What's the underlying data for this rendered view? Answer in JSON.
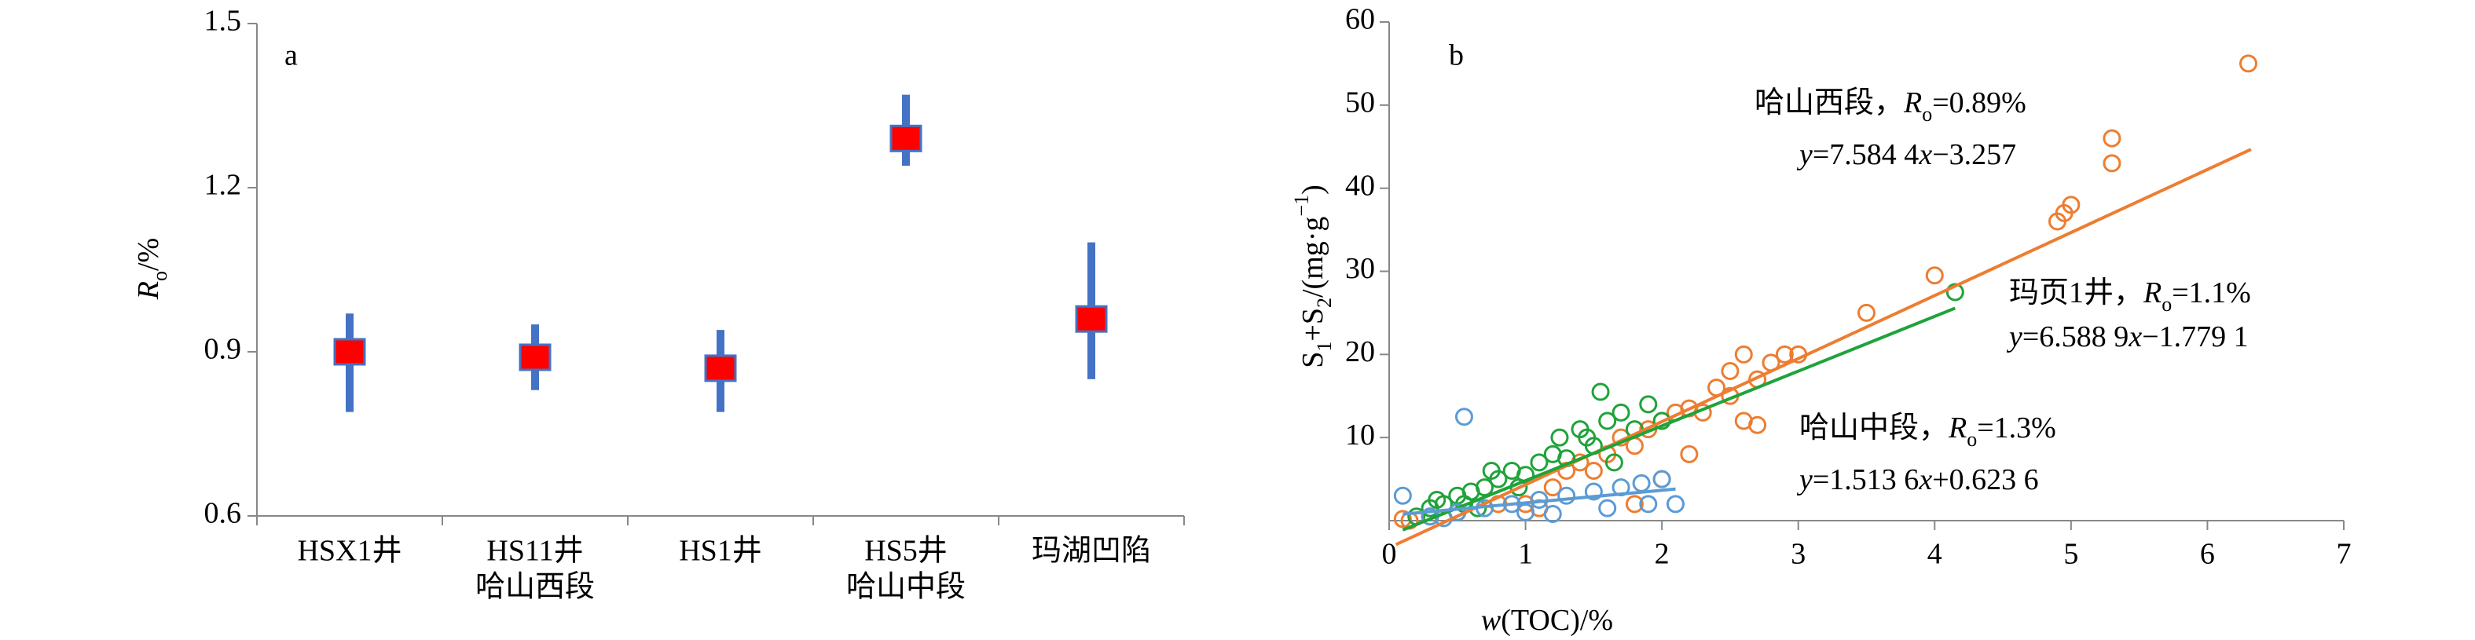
{
  "chart_data": [
    {
      "type": "errorbar",
      "panel_label": "a",
      "ylabel_parts": [
        {
          "text": "R",
          "style": "italic"
        },
        {
          "text": "o",
          "style": "sub"
        },
        {
          "text": "/%",
          "style": "normal"
        }
      ],
      "categories": [
        [
          "HSX1井"
        ],
        [
          "HS11井",
          "哈山西段"
        ],
        [
          "HS1井"
        ],
        [
          "HS5井",
          "哈山中段"
        ],
        [
          "玛湖凹陷"
        ]
      ],
      "values": [
        0.9,
        0.89,
        0.87,
        1.29,
        0.96
      ],
      "low": [
        0.79,
        0.83,
        0.79,
        1.24,
        0.85
      ],
      "high": [
        0.97,
        0.95,
        0.94,
        1.37,
        1.1
      ],
      "color": "#ff0000",
      "error_color": "#4472c4",
      "ylim": [
        0.6,
        1.5
      ],
      "yticks": [
        0.6,
        0.9,
        1.2,
        1.5
      ]
    },
    {
      "type": "scatter",
      "panel_label": "b",
      "ylabel_parts": [
        {
          "text": "S",
          "style": "normal"
        },
        {
          "text": "1",
          "style": "sub"
        },
        {
          "text": "+S",
          "style": "normal"
        },
        {
          "text": "2",
          "style": "sub"
        },
        {
          "text": "/(mg·g",
          "style": "normal"
        },
        {
          "text": "−1",
          "style": "sup"
        },
        {
          "text": ")",
          "style": "normal"
        }
      ],
      "xlabel_parts": [
        {
          "text": "w",
          "style": "italic"
        },
        {
          "text": "(TOC)/%",
          "style": "normal"
        }
      ],
      "name_separator": "，",
      "ro_parts": [
        {
          "text": "R",
          "style": "italic"
        },
        {
          "text": "o",
          "style": "sub"
        }
      ],
      "xlim": [
        0,
        7
      ],
      "xticks": [
        0,
        1,
        2,
        3,
        4,
        5,
        6,
        7
      ],
      "ylim": [
        0,
        60
      ],
      "yticks": [
        10,
        20,
        30,
        40,
        50,
        60
      ],
      "series": [
        {
          "name": "哈山西段",
          "color": "#ed7d31",
          "ro_text": "=0.89%",
          "equation_parts": [
            {
              "text": "y",
              "style": "italic"
            },
            {
              "text": "=7.584 4",
              "style": "normal"
            },
            {
              "text": "x",
              "style": "italic"
            },
            {
              "text": "−3.257",
              "style": "normal"
            }
          ],
          "fit": {
            "slope": 7.5844,
            "intercept": -3.257,
            "x": [
              0.05,
              6.32
            ]
          },
          "x": [
            0.1,
            0.15,
            0.3,
            0.5,
            0.8,
            1.0,
            1.1,
            1.2,
            1.3,
            1.4,
            1.5,
            1.6,
            1.7,
            1.8,
            1.8,
            1.9,
            2.0,
            2.0,
            2.1,
            2.2,
            2.2,
            2.3,
            2.4,
            2.5,
            2.5,
            2.6,
            2.6,
            2.7,
            2.7,
            2.8,
            2.9,
            3.0,
            3.5,
            4.0,
            4.9,
            4.95,
            5.0,
            5.3,
            5.3,
            6.3
          ],
          "values": [
            0.2,
            0,
            0.5,
            1,
            2,
            2,
            1.5,
            4,
            6,
            7,
            6,
            8,
            10,
            9,
            2,
            11,
            12,
            5,
            13,
            13.5,
            8,
            13,
            16,
            15,
            18,
            20,
            12,
            17,
            11.5,
            19,
            20,
            20,
            25,
            29.5,
            36,
            37,
            38,
            46,
            43,
            55
          ]
        },
        {
          "name": "玛页1井",
          "color": "#1fa33a",
          "ro_text": "=1.1%",
          "equation_parts": [
            {
              "text": "y",
              "style": "italic"
            },
            {
              "text": "=6.588 9",
              "style": "normal"
            },
            {
              "text": "x",
              "style": "italic"
            },
            {
              "text": "−1.779 1",
              "style": "normal"
            }
          ],
          "fit": {
            "slope": 6.5889,
            "intercept": -1.7791,
            "x": [
              0.1,
              4.15
            ]
          },
          "x": [
            0.2,
            0.3,
            0.35,
            0.4,
            0.5,
            0.5,
            0.55,
            0.6,
            0.65,
            0.7,
            0.75,
            0.8,
            0.9,
            0.95,
            1.0,
            1.1,
            1.2,
            1.25,
            1.3,
            1.4,
            1.45,
            1.5,
            1.55,
            1.6,
            1.65,
            1.7,
            1.8,
            1.9,
            2.0,
            4.15
          ],
          "values": [
            0.5,
            1.5,
            2.5,
            2,
            3,
            1,
            2,
            3.5,
            1.5,
            4,
            6,
            5,
            6,
            4,
            5.5,
            7,
            8,
            10,
            7.5,
            11,
            10,
            9,
            15.5,
            12,
            7,
            13,
            11,
            14,
            12,
            27.5
          ]
        },
        {
          "name": "哈山中段",
          "color": "#5b9bd5",
          "ro_text": "=1.3%",
          "equation_parts": [
            {
              "text": "y",
              "style": "italic"
            },
            {
              "text": "=1.513 6",
              "style": "normal"
            },
            {
              "text": "x",
              "style": "italic"
            },
            {
              "text": "+0.623 6",
              "style": "normal"
            }
          ],
          "fit": {
            "slope": 1.5136,
            "intercept": 0.6236,
            "x": [
              0.1,
              2.1
            ]
          },
          "x": [
            0.1,
            0.3,
            0.4,
            0.5,
            0.55,
            0.7,
            0.9,
            1.0,
            1.1,
            1.2,
            1.3,
            1.5,
            1.6,
            1.7,
            1.85,
            1.9,
            2.0,
            2.1
          ],
          "values": [
            3,
            0.5,
            0.3,
            1,
            12.5,
            1.5,
            2,
            1,
            2.5,
            0.8,
            3,
            3.5,
            1.5,
            4,
            4.5,
            2,
            5,
            2
          ]
        }
      ]
    }
  ]
}
